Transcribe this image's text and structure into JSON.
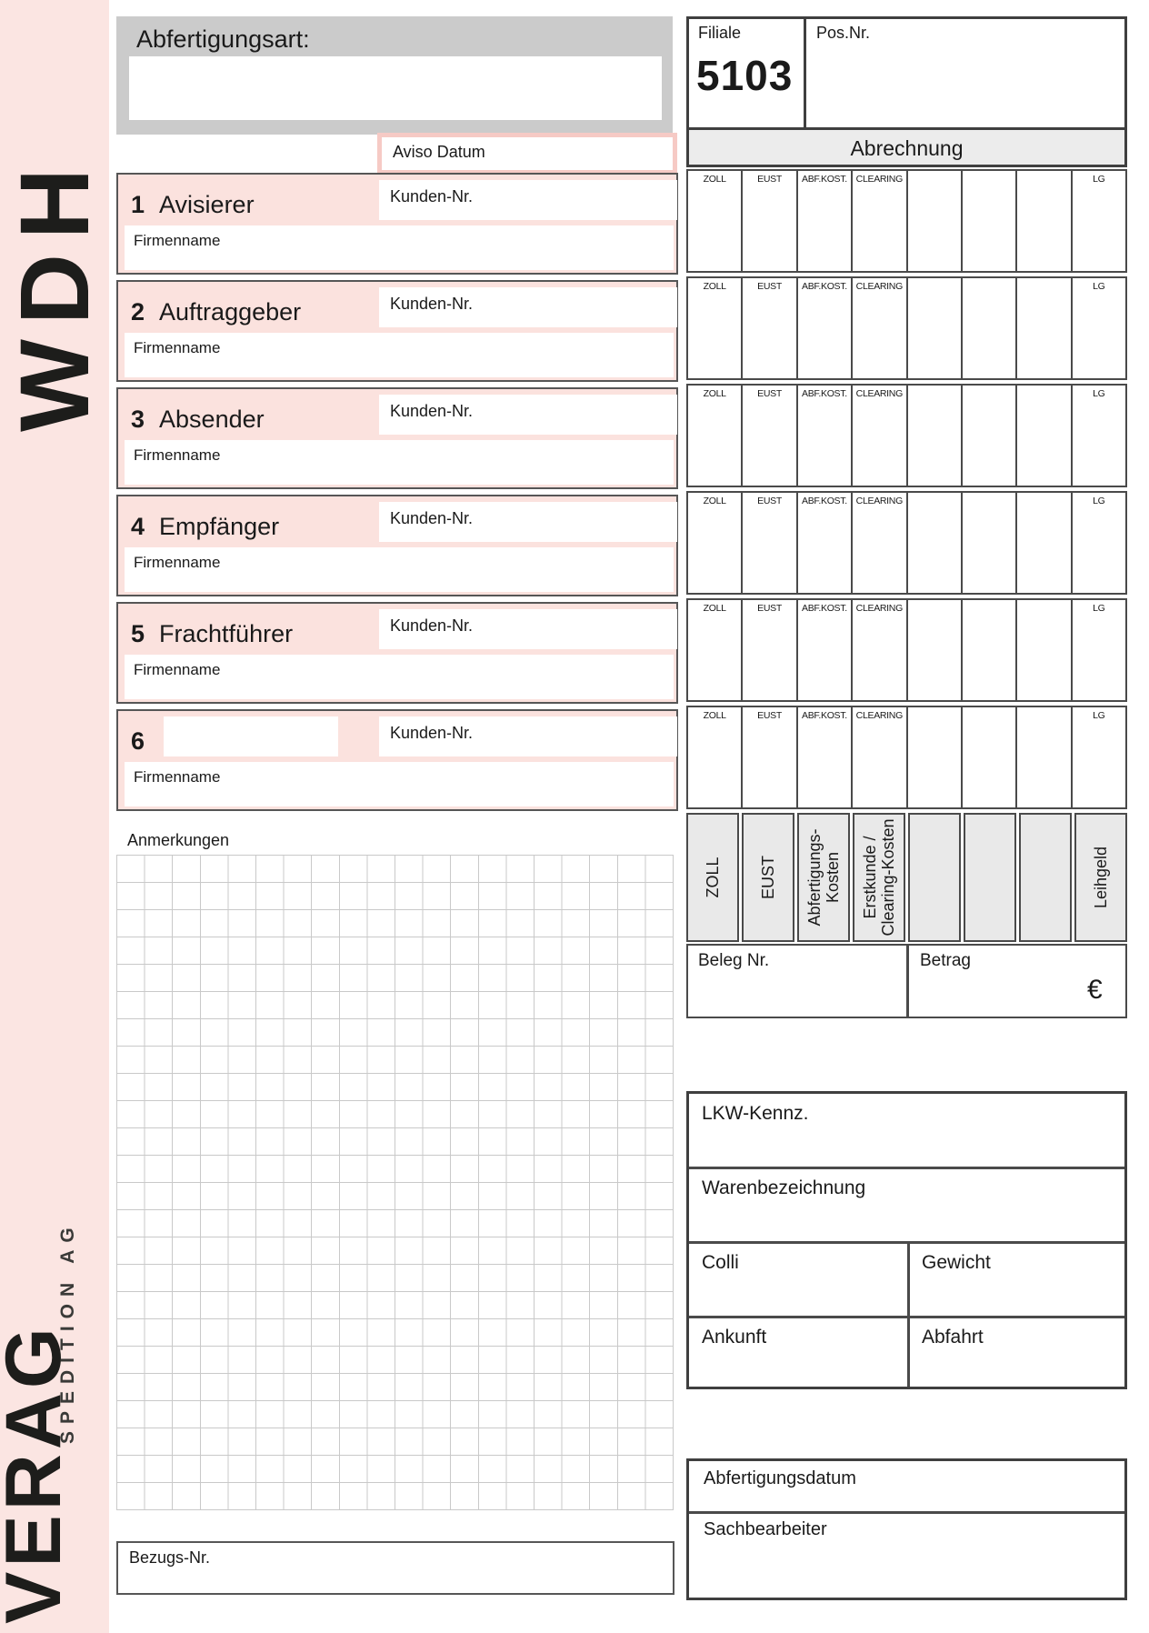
{
  "brand": {
    "wdh": "WDH",
    "verag": "VERAG",
    "spedition": "SPEDITION AG"
  },
  "header": {
    "abfertigungsart_label": "Abfertigungsart:",
    "filiale_label": "Filiale",
    "filiale_value": "5103",
    "pos_nr_label": "Pos.Nr."
  },
  "aviso_label": "Aviso Datum",
  "parties": {
    "kunden_nr_label": "Kunden-Nr.",
    "firmenname_label": "Firmenname",
    "rows": [
      {
        "num": "1",
        "label": "Avisierer"
      },
      {
        "num": "2",
        "label": "Auftraggeber"
      },
      {
        "num": "3",
        "label": "Absender"
      },
      {
        "num": "4",
        "label": "Empfänger"
      },
      {
        "num": "5",
        "label": "Frachtführer"
      },
      {
        "num": "6",
        "label": ""
      }
    ]
  },
  "abrechnung": {
    "title": "Abrechnung",
    "col_headers": [
      "ZOLL",
      "EUST",
      "ABF.KOST.",
      "CLEARING",
      "",
      "",
      "",
      "LG"
    ],
    "row_count": 6,
    "rotated_labels": [
      "ZOLL",
      "EUST",
      "Abfertigungs-\nKosten",
      "Erstkunde /\nClearing-Kosten",
      "",
      "",
      "",
      "Leihgeld"
    ],
    "beleg_label": "Beleg Nr.",
    "betrag_label": "Betrag",
    "currency": "€"
  },
  "shipment": {
    "lkw_label": "LKW-Kennz.",
    "waren_label": "Warenbezeichnung",
    "colli_label": "Colli",
    "gewicht_label": "Gewicht",
    "ankunft_label": "Ankunft",
    "abfahrt_label": "Abfahrt"
  },
  "processing": {
    "abfertigungsdatum_label": "Abfertigungsdatum",
    "sachbearbeiter_label": "Sachbearbeiter"
  },
  "anmerkungen_label": "Anmerkungen",
  "bezugs_label": "Bezugs-Nr.",
  "colors": {
    "pink_stripe": "#fbe5e2",
    "row_pink": "#fbe2de",
    "field_pink": "#f6cac5",
    "header_gray": "#cbcbcb",
    "band_gray": "#ececec",
    "rot_gray": "#e9e9e9",
    "border_dark": "#4a4a4a"
  }
}
